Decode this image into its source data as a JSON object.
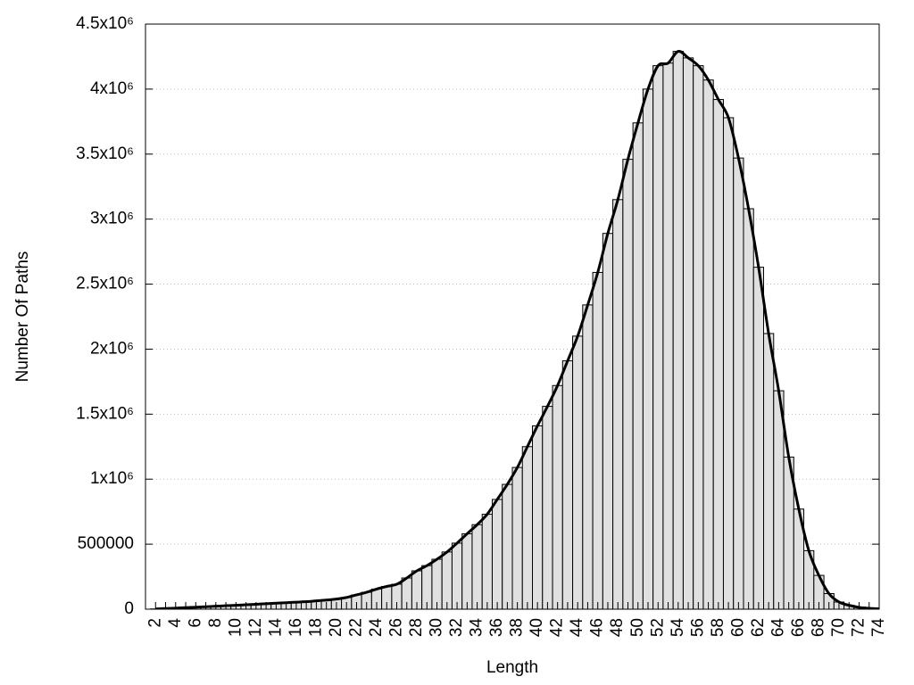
{
  "chart_data": {
    "type": "histogram",
    "x_label": "Length",
    "y_label": "Number Of Paths",
    "x": [
      2,
      3,
      4,
      5,
      6,
      7,
      8,
      9,
      10,
      11,
      12,
      13,
      14,
      15,
      16,
      17,
      18,
      19,
      20,
      21,
      22,
      23,
      24,
      25,
      26,
      27,
      28,
      29,
      30,
      31,
      32,
      33,
      34,
      35,
      36,
      37,
      38,
      39,
      40,
      41,
      42,
      43,
      44,
      45,
      46,
      47,
      48,
      49,
      50,
      51,
      52,
      53,
      54,
      55,
      56,
      57,
      58,
      59,
      60,
      61,
      62,
      63,
      64,
      65,
      66,
      67,
      68,
      69,
      70,
      71,
      72,
      73,
      74
    ],
    "values": [
      2000,
      5000,
      8000,
      12000,
      15000,
      19000,
      23000,
      27000,
      30000,
      34000,
      38000,
      42000,
      46000,
      50000,
      54000,
      58000,
      64000,
      70000,
      78000,
      90000,
      110000,
      130000,
      155000,
      175000,
      192000,
      240000,
      295000,
      335000,
      384000,
      440000,
      508000,
      580000,
      650000,
      730000,
      844000,
      960000,
      1090000,
      1250000,
      1410000,
      1560000,
      1720000,
      1910000,
      2100000,
      2340000,
      2590000,
      2890000,
      3150000,
      3460000,
      3740000,
      4000000,
      4180000,
      4200000,
      4290000,
      4240000,
      4180000,
      4070000,
      3920000,
      3780000,
      3470000,
      3080000,
      2630000,
      2120000,
      1680000,
      1170000,
      770000,
      450000,
      260000,
      120000,
      55000,
      30000,
      14000,
      7000,
      3000
    ],
    "color": "#e0e0e0",
    "edge_color": "#000000",
    "line_color": "#000000",
    "smooth_line": true,
    "xlim": [
      1,
      74
    ],
    "xticks": [
      2,
      4,
      6,
      8,
      10,
      12,
      14,
      16,
      18,
      20,
      22,
      24,
      26,
      28,
      30,
      32,
      34,
      36,
      38,
      40,
      42,
      44,
      46,
      48,
      50,
      52,
      54,
      56,
      58,
      60,
      62,
      64,
      66,
      68,
      70,
      72,
      74
    ],
    "ylim": [
      0,
      4500000
    ],
    "yticks": [
      0,
      500000,
      {
        "value": 1000000,
        "label": "1x10⁶"
      },
      {
        "value": 1500000,
        "label": "1.5x10⁶"
      },
      {
        "value": 2000000,
        "label": "2x10⁶"
      },
      {
        "value": 2500000,
        "label": "2.5x10⁶"
      },
      {
        "value": 3000000,
        "label": "3x10⁶"
      },
      {
        "value": 3500000,
        "label": "3.5x10⁶"
      },
      {
        "value": 4000000,
        "label": "4x10⁶"
      },
      {
        "value": 4500000,
        "label": "4.5x10⁶"
      }
    ],
    "grid": true
  }
}
